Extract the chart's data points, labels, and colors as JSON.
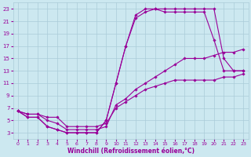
{
  "xlabel": "Windchill (Refroidissement éolien,°C)",
  "bg_color": "#cce8f0",
  "grid_color": "#aaccd8",
  "line_color": "#990099",
  "marker": "D",
  "markersize": 1.8,
  "linewidth": 0.8,
  "xlim": [
    -0.5,
    23.5
  ],
  "ylim": [
    2,
    24
  ],
  "xticks": [
    0,
    1,
    2,
    3,
    4,
    5,
    6,
    7,
    8,
    9,
    10,
    11,
    12,
    13,
    14,
    15,
    16,
    17,
    18,
    19,
    20,
    21,
    22,
    23
  ],
  "yticks": [
    3,
    5,
    7,
    9,
    11,
    13,
    15,
    17,
    19,
    21,
    23
  ],
  "curves": [
    {
      "x": [
        0,
        1,
        2,
        3,
        4,
        5,
        6,
        7,
        8,
        9,
        10,
        11,
        12,
        13,
        14,
        15,
        16,
        17,
        18,
        19,
        20,
        21,
        22,
        23
      ],
      "y": [
        6.5,
        6.0,
        6.0,
        5.5,
        5.5,
        4.0,
        4.0,
        4.0,
        4.0,
        4.5,
        7.0,
        8.0,
        9.0,
        10.0,
        10.5,
        11.0,
        11.5,
        11.5,
        11.5,
        11.5,
        11.5,
        12.0,
        12.0,
        12.5
      ]
    },
    {
      "x": [
        0,
        1,
        2,
        3,
        4,
        5,
        6,
        7,
        8,
        9,
        10,
        11,
        12,
        13,
        14,
        15,
        16,
        17,
        18,
        19,
        20,
        21,
        22,
        23
      ],
      "y": [
        6.5,
        6.0,
        6.0,
        5.0,
        4.5,
        3.5,
        3.5,
        3.5,
        3.5,
        4.0,
        7.5,
        8.5,
        10.0,
        11.0,
        12.0,
        13.0,
        14.0,
        15.0,
        15.0,
        15.0,
        15.5,
        16.0,
        16.0,
        16.5
      ]
    },
    {
      "x": [
        0,
        1,
        2,
        3,
        4,
        5,
        6,
        7,
        8,
        9,
        10,
        11,
        12,
        13,
        14,
        15,
        16,
        17,
        18,
        19,
        20,
        21,
        22,
        23
      ],
      "y": [
        6.5,
        5.5,
        5.5,
        4.0,
        3.5,
        3.0,
        3.0,
        3.0,
        3.0,
        5.0,
        11.0,
        17.0,
        21.5,
        22.5,
        23.0,
        22.5,
        22.5,
        22.5,
        22.5,
        22.5,
        18.0,
        13.0,
        13.0,
        13.0
      ]
    },
    {
      "x": [
        0,
        1,
        2,
        3,
        4,
        5,
        6,
        7,
        8,
        9,
        10,
        11,
        12,
        13,
        14,
        15,
        16,
        17,
        18,
        19,
        20,
        21,
        22,
        23
      ],
      "y": [
        6.5,
        5.5,
        5.5,
        4.0,
        3.5,
        3.0,
        3.0,
        3.0,
        3.0,
        5.0,
        11.0,
        17.0,
        22.0,
        23.0,
        23.0,
        23.0,
        23.0,
        23.0,
        23.0,
        23.0,
        23.0,
        15.0,
        13.0,
        13.0
      ]
    }
  ]
}
